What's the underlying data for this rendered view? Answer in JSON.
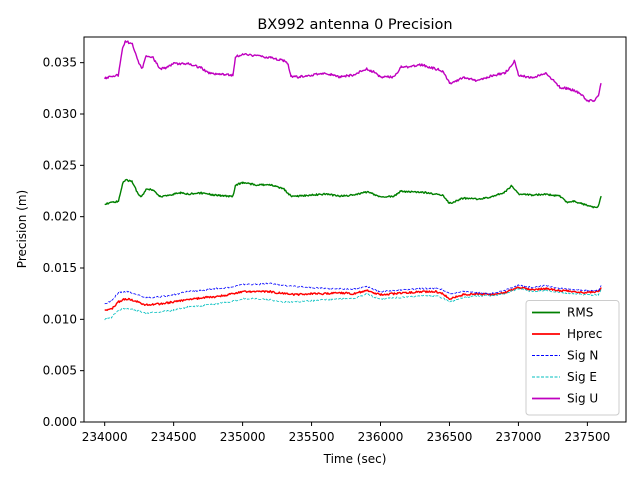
{
  "chart_data": {
    "type": "line",
    "title": "BX992 antenna 0 Precision",
    "xlabel": "Time (sec)",
    "ylabel": "Precision (m)",
    "xlim": [
      233850,
      237780
    ],
    "ylim": [
      0.0,
      0.0375
    ],
    "xticks": [
      234000,
      234500,
      235000,
      235500,
      236000,
      236500,
      237000,
      237500
    ],
    "xtick_labels": [
      "234000",
      "234500",
      "235000",
      "235500",
      "236000",
      "236500",
      "237000",
      "237500"
    ],
    "yticks": [
      0.0,
      0.005,
      0.01,
      0.015,
      0.02,
      0.025,
      0.03,
      0.035
    ],
    "ytick_labels": [
      "0.000",
      "0.005",
      "0.010",
      "0.015",
      "0.020",
      "0.025",
      "0.030",
      "0.035"
    ],
    "grid": false,
    "legend_position": "lower-right",
    "series": [
      {
        "name": "RMS",
        "color": "#008000",
        "style": "solid",
        "x": [
          234000,
          234050,
          234100,
          234130,
          234150,
          234200,
          234250,
          234270,
          234300,
          234350,
          234400,
          234450,
          234500,
          234550,
          234600,
          234700,
          234800,
          234900,
          234930,
          234950,
          235000,
          235100,
          235200,
          235300,
          235350,
          235400,
          235500,
          235600,
          235700,
          235800,
          235900,
          235950,
          236000,
          236100,
          236150,
          236200,
          236300,
          236400,
          236450,
          236500,
          236600,
          236700,
          236800,
          236900,
          236950,
          237000,
          237100,
          237200,
          237300,
          237350,
          237400,
          237500,
          237550,
          237580,
          237600
        ],
        "values": [
          0.0212,
          0.0214,
          0.0215,
          0.0232,
          0.0236,
          0.0234,
          0.022,
          0.022,
          0.0227,
          0.0226,
          0.022,
          0.022,
          0.0222,
          0.0223,
          0.0222,
          0.0223,
          0.0221,
          0.022,
          0.022,
          0.0231,
          0.0233,
          0.0231,
          0.0231,
          0.0227,
          0.022,
          0.022,
          0.0221,
          0.0222,
          0.022,
          0.0221,
          0.0224,
          0.0222,
          0.0219,
          0.022,
          0.0225,
          0.0224,
          0.0224,
          0.0222,
          0.0221,
          0.0213,
          0.0218,
          0.0217,
          0.0219,
          0.0224,
          0.023,
          0.0222,
          0.0221,
          0.0222,
          0.022,
          0.0214,
          0.0215,
          0.0211,
          0.0209,
          0.021,
          0.022
        ]
      },
      {
        "name": "Hprec",
        "color": "#ff0000",
        "style": "solid",
        "x": [
          234000,
          234050,
          234100,
          234150,
          234200,
          234300,
          234400,
          234500,
          234600,
          234700,
          234800,
          234900,
          235000,
          235100,
          235200,
          235300,
          235400,
          235500,
          235600,
          235700,
          235800,
          235900,
          235950,
          236000,
          236100,
          236200,
          236300,
          236400,
          236450,
          236500,
          236600,
          236700,
          236800,
          236900,
          237000,
          237100,
          237200,
          237300,
          237400,
          237500,
          237580,
          237600
        ],
        "values": [
          0.0108,
          0.011,
          0.0117,
          0.012,
          0.0119,
          0.0114,
          0.0115,
          0.0117,
          0.0119,
          0.0121,
          0.0122,
          0.0124,
          0.0127,
          0.0127,
          0.0127,
          0.0125,
          0.0124,
          0.0125,
          0.0125,
          0.0126,
          0.0125,
          0.0128,
          0.0126,
          0.0124,
          0.0125,
          0.0126,
          0.0127,
          0.0127,
          0.0125,
          0.012,
          0.0124,
          0.0125,
          0.0124,
          0.0126,
          0.0131,
          0.0129,
          0.013,
          0.0128,
          0.0127,
          0.0126,
          0.0127,
          0.0131
        ]
      },
      {
        "name": "Sig N",
        "color": "#0000ff",
        "style": "dashed",
        "x": [
          234000,
          234050,
          234100,
          234150,
          234200,
          234300,
          234400,
          234500,
          234600,
          234700,
          234800,
          234900,
          235000,
          235100,
          235200,
          235300,
          235400,
          235500,
          235600,
          235700,
          235800,
          235900,
          235950,
          236000,
          236100,
          236200,
          236300,
          236400,
          236450,
          236500,
          236600,
          236700,
          236800,
          236900,
          237000,
          237100,
          237200,
          237300,
          237400,
          237500,
          237580,
          237600
        ],
        "values": [
          0.0115,
          0.0118,
          0.0126,
          0.0127,
          0.0126,
          0.0121,
          0.0122,
          0.0124,
          0.0127,
          0.0128,
          0.013,
          0.0131,
          0.0134,
          0.0134,
          0.0135,
          0.0133,
          0.0132,
          0.0131,
          0.013,
          0.013,
          0.0129,
          0.0132,
          0.0129,
          0.0127,
          0.0128,
          0.0129,
          0.013,
          0.013,
          0.0129,
          0.0125,
          0.0127,
          0.0126,
          0.0125,
          0.0128,
          0.0133,
          0.0131,
          0.0133,
          0.013,
          0.0129,
          0.0128,
          0.0128,
          0.0133
        ]
      },
      {
        "name": "Sig E",
        "color": "#00bfbf",
        "style": "dashed",
        "x": [
          234000,
          234050,
          234100,
          234150,
          234200,
          234300,
          234400,
          234500,
          234600,
          234700,
          234800,
          234900,
          235000,
          235100,
          235200,
          235300,
          235400,
          235500,
          235600,
          235700,
          235800,
          235900,
          235950,
          236000,
          236100,
          236200,
          236300,
          236400,
          236450,
          236500,
          236600,
          236700,
          236800,
          236900,
          237000,
          237100,
          237200,
          237300,
          237400,
          237500,
          237580,
          237600
        ],
        "values": [
          0.01,
          0.0102,
          0.0109,
          0.0111,
          0.011,
          0.0106,
          0.0107,
          0.0109,
          0.0112,
          0.0113,
          0.0115,
          0.0117,
          0.012,
          0.012,
          0.0119,
          0.0117,
          0.0117,
          0.0118,
          0.0119,
          0.012,
          0.012,
          0.0125,
          0.0122,
          0.012,
          0.0121,
          0.0122,
          0.0123,
          0.0123,
          0.0121,
          0.0117,
          0.0121,
          0.0123,
          0.0123,
          0.0125,
          0.013,
          0.0127,
          0.0128,
          0.0126,
          0.0125,
          0.0124,
          0.0124,
          0.0129
        ]
      },
      {
        "name": "Sig U",
        "color": "#bf00bf",
        "style": "solid",
        "x": [
          234000,
          234050,
          234100,
          234130,
          234150,
          234200,
          234250,
          234270,
          234300,
          234350,
          234400,
          234450,
          234500,
          234600,
          234700,
          234750,
          234800,
          234900,
          234930,
          234950,
          235000,
          235100,
          235200,
          235300,
          235330,
          235350,
          235400,
          235500,
          235600,
          235700,
          235800,
          235900,
          235950,
          236000,
          236100,
          236150,
          236200,
          236300,
          236400,
          236450,
          236500,
          236550,
          236600,
          236700,
          236800,
          236900,
          236950,
          236970,
          237000,
          237100,
          237200,
          237230,
          237300,
          237350,
          237400,
          237450,
          237500,
          237550,
          237580,
          237600
        ],
        "values": [
          0.0335,
          0.0336,
          0.0338,
          0.0365,
          0.0371,
          0.0368,
          0.0349,
          0.0344,
          0.0356,
          0.0355,
          0.0344,
          0.0345,
          0.0349,
          0.0349,
          0.0345,
          0.034,
          0.0339,
          0.0338,
          0.0338,
          0.0356,
          0.0358,
          0.0357,
          0.0355,
          0.0352,
          0.0348,
          0.0337,
          0.0336,
          0.0338,
          0.034,
          0.0336,
          0.0338,
          0.0344,
          0.0341,
          0.0336,
          0.0336,
          0.0346,
          0.0346,
          0.0348,
          0.0344,
          0.0342,
          0.033,
          0.0332,
          0.0336,
          0.0332,
          0.0337,
          0.034,
          0.0346,
          0.0352,
          0.0338,
          0.0335,
          0.034,
          0.0336,
          0.0326,
          0.0325,
          0.0323,
          0.032,
          0.0313,
          0.0313,
          0.0318,
          0.033
        ]
      }
    ]
  }
}
